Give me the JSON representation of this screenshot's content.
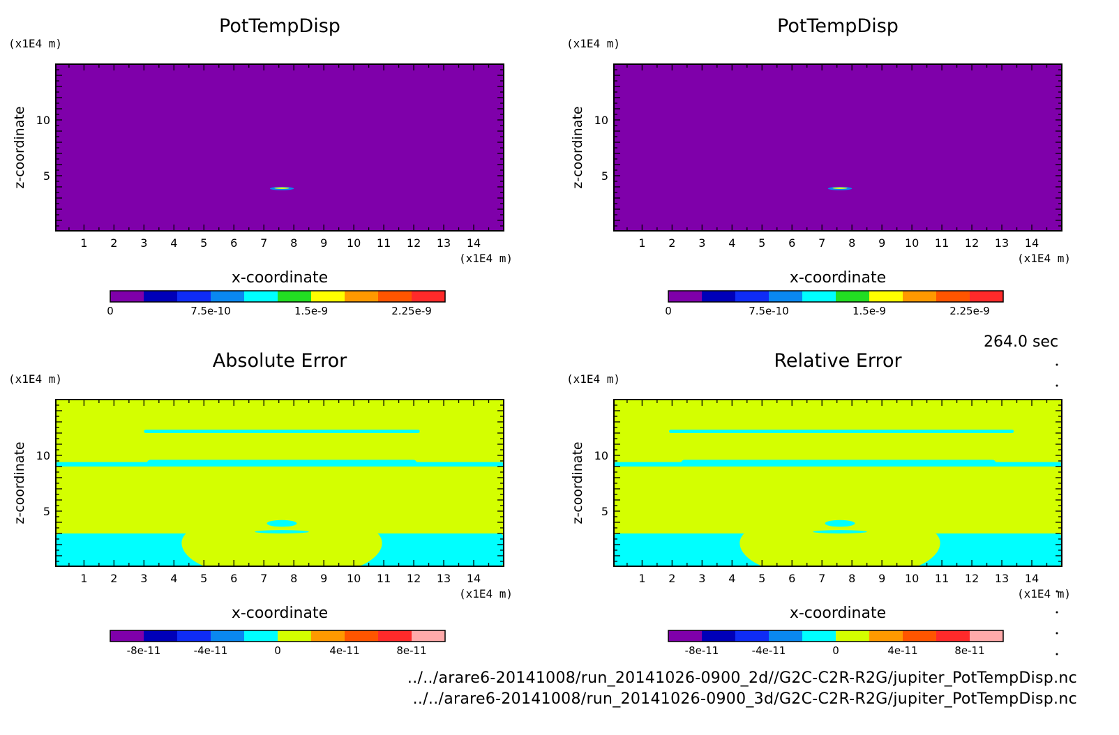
{
  "timestamp": "264.0 sec",
  "footer": {
    "file_2d": "../../arare6-20141008/run_20141026-0900_2d//G2C-C2R-R2G/jupiter_PotTempDisp.nc",
    "file_3d": "../../arare6-20141008/run_20141026-0900_3d/G2C-C2R-R2G/jupiter_PotTempDisp.nc"
  },
  "colors": {
    "purple": "#7f00aa",
    "navy": "#0000b8",
    "blue": "#0f2cf5",
    "azure": "#0a88f0",
    "cyan": "#00ffff",
    "green": "#22dd22",
    "yellow": "#ffff00",
    "lime": "#d4ff00",
    "orange": "#ff9900",
    "redorange": "#ff5500",
    "red": "#ff2a2a",
    "pink": "#ffaaaa"
  },
  "chart_data": [
    {
      "id": "tl",
      "type": "heatmap",
      "title": "PotTempDisp",
      "xlabel": "x-coordinate",
      "ylabel": "z-coordinate",
      "x_unit": "(x1E4 m)",
      "y_unit": "(x1E4 m)",
      "xlim": [
        0.06,
        15.0
      ],
      "ylim": [
        0.06,
        15.0
      ],
      "xticks": [
        "1",
        "2",
        "3",
        "4",
        "5",
        "6",
        "7",
        "8",
        "9",
        "10",
        "11",
        "12",
        "13",
        "14"
      ],
      "yticks": [
        "5",
        "10"
      ],
      "background": "purple",
      "features": [
        {
          "kind": "blob",
          "x": [
            7.2,
            8.0
          ],
          "z": [
            3.7,
            4.0
          ],
          "color": "azure"
        },
        {
          "kind": "blob",
          "x": [
            7.35,
            7.85
          ],
          "z": [
            3.82,
            3.95
          ],
          "color": "yellow"
        }
      ],
      "colorbar": {
        "colors": [
          "purple",
          "navy",
          "blue",
          "azure",
          "cyan",
          "green",
          "yellow",
          "orange",
          "redorange",
          "red"
        ],
        "tick_labels": [
          "0",
          "7.5e-10",
          "1.5e-9",
          "2.25e-9"
        ],
        "tick_positions": [
          0,
          3,
          6,
          9
        ]
      }
    },
    {
      "id": "tr",
      "type": "heatmap",
      "title": "PotTempDisp",
      "xlabel": "x-coordinate",
      "ylabel": "z-coordinate",
      "x_unit": "(x1E4 m)",
      "y_unit": "(x1E4 m)",
      "xlim": [
        0.06,
        15.0
      ],
      "ylim": [
        0.06,
        15.0
      ],
      "xticks": [
        "1",
        "2",
        "3",
        "4",
        "5",
        "6",
        "7",
        "8",
        "9",
        "10",
        "11",
        "12",
        "13",
        "14"
      ],
      "yticks": [
        "5",
        "10"
      ],
      "background": "purple",
      "features": [
        {
          "kind": "blob",
          "x": [
            7.2,
            8.0
          ],
          "z": [
            3.7,
            4.0
          ],
          "color": "azure"
        },
        {
          "kind": "blob",
          "x": [
            7.35,
            7.85
          ],
          "z": [
            3.82,
            3.95
          ],
          "color": "yellow"
        }
      ],
      "colorbar": {
        "colors": [
          "purple",
          "navy",
          "blue",
          "azure",
          "cyan",
          "green",
          "yellow",
          "orange",
          "redorange",
          "red"
        ],
        "tick_labels": [
          "0",
          "7.5e-10",
          "1.5e-9",
          "2.25e-9"
        ],
        "tick_positions": [
          0,
          3,
          6,
          9
        ]
      }
    },
    {
      "id": "bl",
      "type": "heatmap",
      "title": "Absolute Error",
      "xlabel": "x-coordinate",
      "ylabel": "z-coordinate",
      "x_unit": "(x1E4 m)",
      "y_unit": "(x1E4 m)",
      "xlim": [
        0.06,
        15.0
      ],
      "ylim": [
        0.06,
        15.0
      ],
      "xticks": [
        "1",
        "2",
        "3",
        "4",
        "5",
        "6",
        "7",
        "8",
        "9",
        "10",
        "11",
        "12",
        "13",
        "14"
      ],
      "yticks": [
        "5",
        "10"
      ],
      "background": "lime",
      "features": [
        {
          "kind": "band",
          "x": [
            3.0,
            12.2
          ],
          "z": [
            12.0,
            12.3
          ],
          "color": "cyan"
        },
        {
          "kind": "band",
          "x": [
            0.06,
            15.0
          ],
          "z": [
            9.0,
            9.4
          ],
          "color": "cyan"
        },
        {
          "kind": "band",
          "x": [
            3.1,
            12.1
          ],
          "z": [
            9.0,
            9.6
          ],
          "color": "cyan"
        },
        {
          "kind": "band",
          "x": [
            0.06,
            15.0
          ],
          "z": [
            0.06,
            3.0
          ],
          "color": "cyan"
        },
        {
          "kind": "mound",
          "x": [
            4.2,
            11.0
          ],
          "z": [
            0.06,
            3.0
          ],
          "color": "lime"
        },
        {
          "kind": "blob",
          "x": [
            7.1,
            8.1
          ],
          "z": [
            3.6,
            4.2
          ],
          "color": "cyan"
        },
        {
          "kind": "blob",
          "x": [
            6.7,
            8.5
          ],
          "z": [
            3.0,
            3.3
          ],
          "color": "cyan"
        }
      ],
      "colorbar": {
        "colors": [
          "purple",
          "navy",
          "blue",
          "azure",
          "cyan",
          "lime",
          "orange",
          "redorange",
          "red",
          "pink"
        ],
        "tick_labels": [
          "-8e-11",
          "-4e-11",
          "0",
          "4e-11",
          "8e-11"
        ],
        "tick_positions": [
          1,
          3,
          5,
          7,
          9
        ]
      }
    },
    {
      "id": "br",
      "type": "heatmap",
      "title": "Relative Error",
      "xlabel": "x-coordinate",
      "ylabel": "z-coordinate",
      "x_unit": "(x1E4 m)",
      "y_unit": "(x1E4 m)",
      "xlim": [
        0.06,
        15.0
      ],
      "ylim": [
        0.06,
        15.0
      ],
      "xticks": [
        "1",
        "2",
        "3",
        "4",
        "5",
        "6",
        "7",
        "8",
        "9",
        "10",
        "11",
        "12",
        "13",
        "14"
      ],
      "yticks": [
        "5",
        "10"
      ],
      "background": "lime",
      "features": [
        {
          "kind": "band",
          "x": [
            1.9,
            13.4
          ],
          "z": [
            12.0,
            12.3
          ],
          "color": "cyan"
        },
        {
          "kind": "band",
          "x": [
            0.06,
            15.0
          ],
          "z": [
            9.0,
            9.4
          ],
          "color": "cyan"
        },
        {
          "kind": "band",
          "x": [
            2.3,
            12.8
          ],
          "z": [
            9.0,
            9.6
          ],
          "color": "cyan"
        },
        {
          "kind": "band",
          "x": [
            0.06,
            15.0
          ],
          "z": [
            0.06,
            3.0
          ],
          "color": "cyan"
        },
        {
          "kind": "mound",
          "x": [
            4.2,
            11.0
          ],
          "z": [
            0.06,
            3.0
          ],
          "color": "lime"
        },
        {
          "kind": "blob",
          "x": [
            7.1,
            8.1
          ],
          "z": [
            3.6,
            4.2
          ],
          "color": "cyan"
        },
        {
          "kind": "blob",
          "x": [
            6.7,
            8.5
          ],
          "z": [
            3.0,
            3.3
          ],
          "color": "cyan"
        }
      ],
      "colorbar": {
        "colors": [
          "purple",
          "navy",
          "blue",
          "azure",
          "cyan",
          "lime",
          "orange",
          "redorange",
          "red",
          "pink"
        ],
        "tick_labels": [
          "-8e-11",
          "-4e-11",
          "0",
          "4e-11",
          "8e-11"
        ],
        "tick_positions": [
          1,
          3,
          5,
          7,
          9
        ]
      }
    }
  ]
}
